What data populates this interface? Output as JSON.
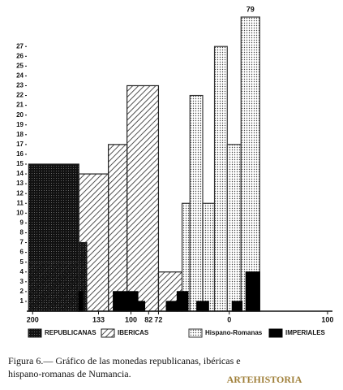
{
  "chart_data": {
    "type": "histogram",
    "series": [
      {
        "name": "REPUBLICANAS",
        "color": "#1a1a1a",
        "pattern": "dense",
        "bins": [
          -204,
          -153,
          -145
        ],
        "values": [
          15,
          7
        ]
      },
      {
        "name": "IBERICAS",
        "color": "#222222",
        "pattern": "diagonal",
        "bins": [
          -204,
          -153,
          -123,
          -104,
          -72,
          -48
        ],
        "values": [
          5,
          14,
          17,
          23,
          4
        ]
      },
      {
        "name": "Hispano-Romanas",
        "color": "#333333",
        "pattern": "dots",
        "bins": [
          -48,
          -40,
          -27,
          -15,
          -2,
          12,
          31
        ],
        "values": [
          11,
          22,
          11,
          27,
          17,
          79
        ],
        "value_labels": [
          null,
          null,
          null,
          null,
          null,
          "79"
        ]
      },
      {
        "name": "IMPERIALES",
        "color": "#000000",
        "pattern": "solid",
        "bins": [
          -153,
          -149,
          -118,
          -93,
          -86,
          -64,
          -53,
          -42,
          -33,
          -21,
          3,
          13,
          17,
          31
        ],
        "values": [
          2,
          null,
          2,
          1,
          null,
          1,
          2,
          null,
          1,
          null,
          1,
          null,
          4
        ]
      }
    ],
    "xlim": [
      -206,
      105
    ],
    "xticks": [
      {
        "value": -200,
        "label": "200"
      },
      {
        "value": -133,
        "label": "133"
      },
      {
        "value": -100,
        "label": "100"
      },
      {
        "value": -82,
        "label": "82"
      },
      {
        "value": -72,
        "label": "72"
      },
      0,
      100
    ],
    "ylim": [
      0,
      30
    ],
    "yticks": [
      1,
      2,
      3,
      4,
      5,
      6,
      7,
      8,
      9,
      10,
      11,
      12,
      13,
      14,
      15,
      16,
      17,
      18,
      19,
      20,
      21,
      22,
      23,
      24,
      25,
      26,
      27
    ],
    "caption": [
      "Figura 6.— Gráfico de las monedas republicanas, ibéricas e",
      "hispano-romanas de Numancia."
    ],
    "watermark": "ARTEHISTORIA"
  }
}
